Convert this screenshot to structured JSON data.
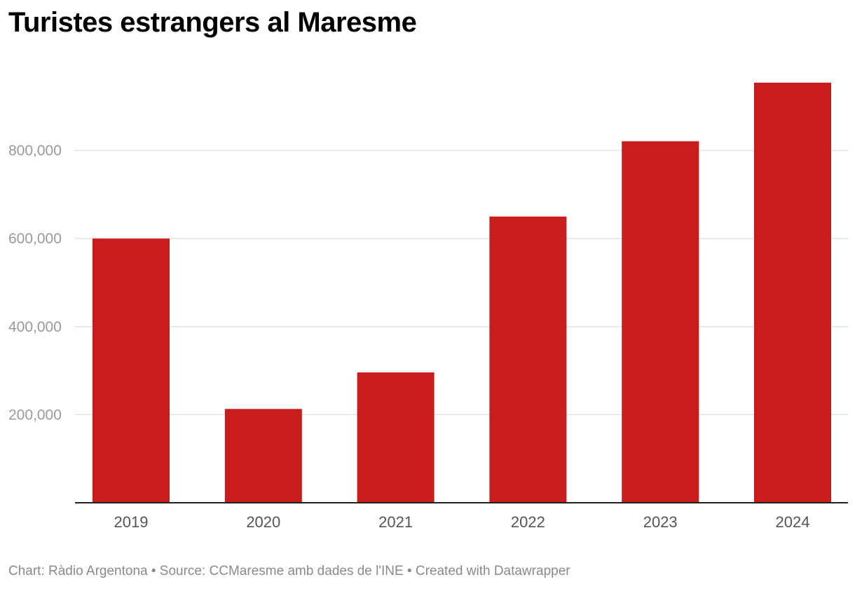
{
  "chart_data": {
    "type": "bar",
    "title": "Turistes estrangers al Maresme",
    "categories": [
      "2019",
      "2020",
      "2021",
      "2022",
      "2023",
      "2024"
    ],
    "values": [
      600000,
      213000,
      296000,
      650000,
      821000,
      954000
    ],
    "ylim": [
      0,
      1000000
    ],
    "yticks": [
      200000,
      400000,
      600000,
      800000
    ],
    "ytick_labels": [
      "200,000",
      "400,000",
      "600,000",
      "800,000"
    ],
    "xlabel": "",
    "ylabel": "",
    "grid": true,
    "bar_color": "#c91d1d"
  },
  "footer": {
    "credit": "Chart: Ràdio Argentona • Source: CCMaresme amb dades de l'INE • Created with Datawrapper"
  }
}
